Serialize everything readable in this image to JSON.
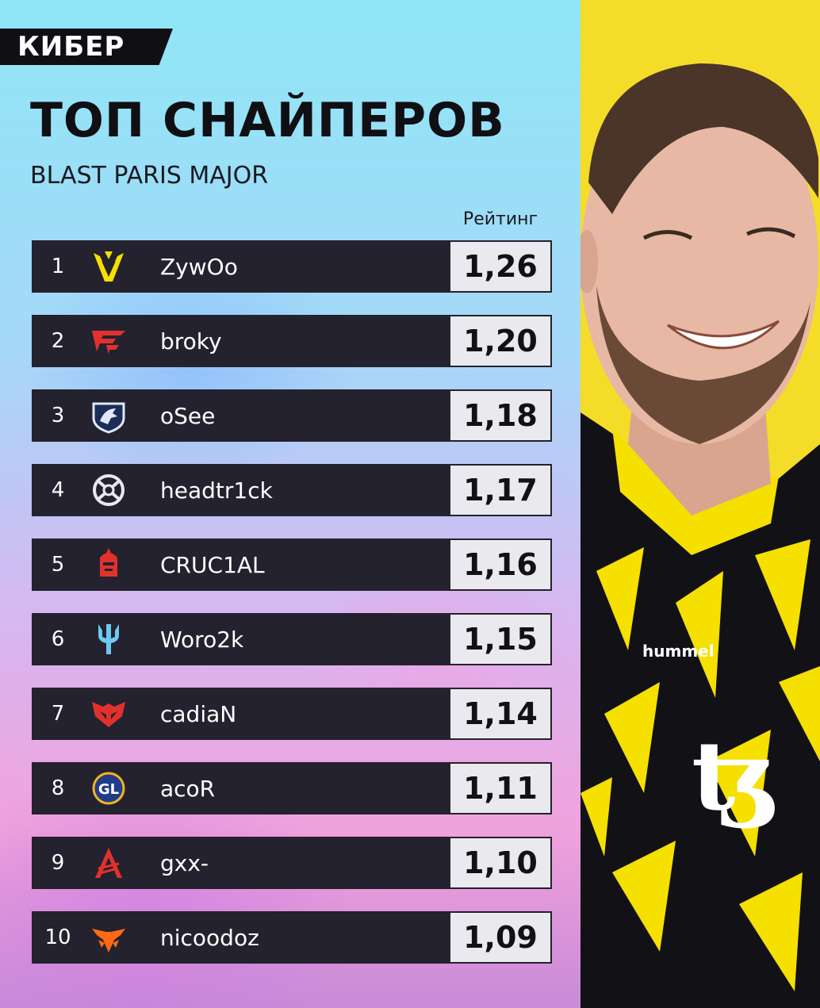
{
  "brand": {
    "logo_text": "КИБЕР"
  },
  "header": {
    "title": "ТОП СНАЙПЕРОВ",
    "subtitle": "BLAST PARIS MAJOR"
  },
  "table": {
    "rating_header": "Рейтинг",
    "rows": [
      {
        "rank": "1",
        "team_icon": "vitality-logo-icon",
        "player": "ZywOo",
        "rating": "1,26"
      },
      {
        "rank": "2",
        "team_icon": "faze-logo-icon",
        "player": "broky",
        "rating": "1,20"
      },
      {
        "rank": "3",
        "team_icon": "liquid-logo-icon",
        "player": "oSee",
        "rating": "1,18"
      },
      {
        "rank": "4",
        "team_icon": "nip-logo-icon",
        "player": "headtr1ck",
        "rating": "1,17"
      },
      {
        "rank": "5",
        "team_icon": "knight-helmet-logo-icon",
        "player": "CRUC1AL",
        "rating": "1,16"
      },
      {
        "rank": "6",
        "team_icon": "trident-logo-icon",
        "player": "Woro2k",
        "rating": "1,15"
      },
      {
        "rank": "7",
        "team_icon": "heroic-logo-icon",
        "player": "cadiaN",
        "rating": "1,14"
      },
      {
        "rank": "8",
        "team_icon": "gamerlegion-logo-icon",
        "player": "acoR",
        "rating": "1,11"
      },
      {
        "rank": "9",
        "team_icon": "apeks-logo-icon",
        "player": "gxx-",
        "rating": "1,10"
      },
      {
        "rank": "10",
        "team_icon": "fnatic-logo-icon",
        "player": "nicoodoz",
        "rating": "1,09"
      }
    ]
  },
  "colors": {
    "row_bg": "#24222e",
    "rating_bg": "#e9e9ee",
    "accent_blue": "#2f7dff",
    "photo_bg": "#f5dc28"
  }
}
